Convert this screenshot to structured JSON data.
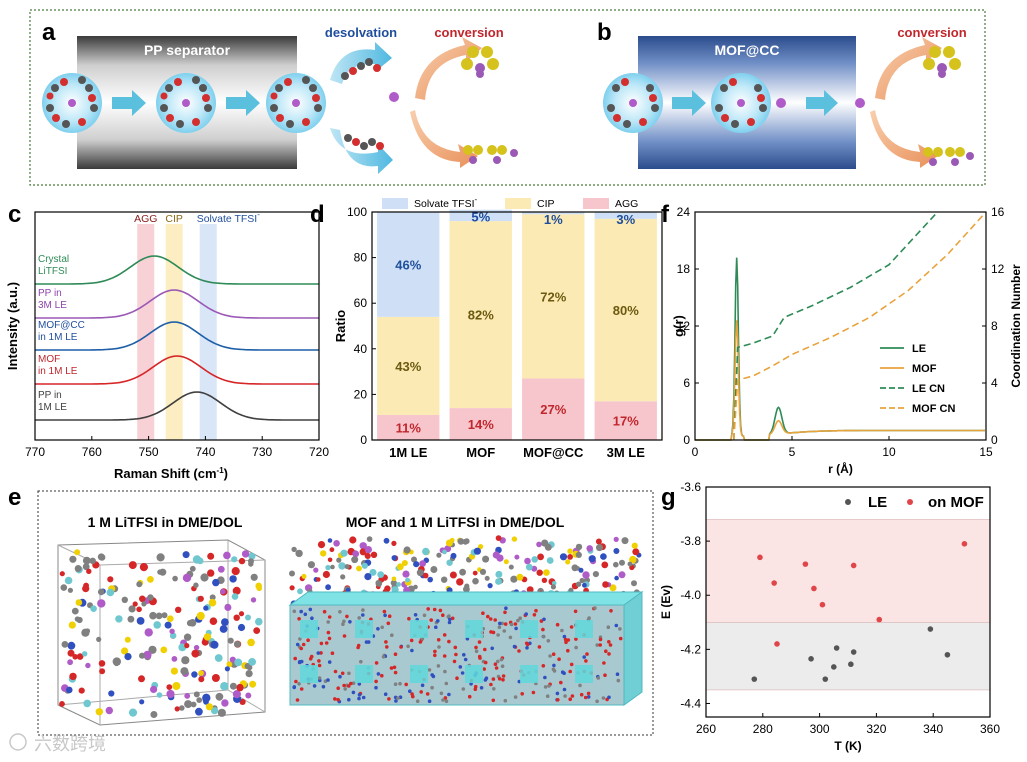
{
  "panel_labels": {
    "a": "a",
    "b": "b",
    "c": "c",
    "d": "d",
    "e": "e",
    "f": "f",
    "g": "g"
  },
  "schematic": {
    "pp_separator": "PP separator",
    "mof_cc": "MOF@CC",
    "desolvation": "desolvation",
    "conversion_a": "conversion",
    "conversion_b": "conversion"
  },
  "simulation": {
    "left_title": "1 M LiTFSI in DME/DOL",
    "right_title": "MOF and 1 M LiTFSI in DME/DOL"
  },
  "watermark": "六数跨境",
  "colors": {
    "blue_arrow": "#5bc0de",
    "mof_blue": "#2f4f8f",
    "le_green": "#2e8b57",
    "mof_orange": "#e8a33d",
    "agg_pink": "#f6c6cc",
    "cip_yellow": "#fbeab3",
    "solvate_blue": "#cfe0f6",
    "red_text": "#c0272d",
    "navy_text": "#1f4e9c"
  },
  "chart_data": [
    {
      "id": "c",
      "type": "line",
      "xlabel": "Raman Shift (cm",
      "xlabel_sup": "-1",
      "xlabel_end": ")",
      "ylabel": "Intensity (a.u.)",
      "xlim": [
        770,
        720
      ],
      "xticks": [
        "770",
        "760",
        "750",
        "740",
        "730",
        "720"
      ],
      "bands": [
        {
          "label": "AGG",
          "center": 750.5,
          "width": 3,
          "color": "#f6c6cc",
          "text_color": "#8b1a1a"
        },
        {
          "label": "CIP",
          "center": 745.5,
          "width": 3,
          "color": "#fbeab3",
          "text_color": "#8b6914"
        },
        {
          "label": "Solvate TFSI",
          "sup": "-",
          "center": 739.5,
          "width": 3,
          "color": "#cfe0f6",
          "text_color": "#1f4e9c"
        }
      ],
      "series": [
        {
          "name": "PP in 1M LE",
          "lines": [
            "PP in",
            "1M LE"
          ],
          "peak": 741.5,
          "color": "#404040",
          "text_color": "#404040"
        },
        {
          "name": "MOF in 1M LE",
          "lines": [
            "MOF",
            "in 1M LE"
          ],
          "peak": 745.0,
          "color": "#d62728",
          "text_color": "#c0272d"
        },
        {
          "name": "MOF@CC in 1M LE",
          "lines": [
            "MOF@CC",
            "in 1M LE"
          ],
          "peak": 745.5,
          "color": "#1f5fa8",
          "text_color": "#1f4e9c"
        },
        {
          "name": "PP in 3M LE",
          "lines": [
            "PP in",
            "3M LE"
          ],
          "peak": 745.5,
          "color": "#9b59b6",
          "text_color": "#8e44ad"
        },
        {
          "name": "Crystal LiTFSI",
          "lines": [
            "Crystal",
            "LiTFSI"
          ],
          "peak": 749.0,
          "color": "#2e8b57",
          "text_color": "#2e8b57"
        }
      ]
    },
    {
      "id": "d",
      "type": "bar",
      "ylabel": "Ratio",
      "ylim": [
        0,
        100
      ],
      "yticks": [
        "0",
        "20",
        "40",
        "60",
        "80",
        "100"
      ],
      "categories": [
        "1M LE",
        "MOF",
        "MOF@CC",
        "3M LE"
      ],
      "legend": [
        {
          "name": "Solvate TFSI",
          "sup": "-",
          "color": "#cfe0f6"
        },
        {
          "name": "CIP",
          "color": "#fbeab3"
        },
        {
          "name": "AGG",
          "color": "#f6c6cc"
        }
      ],
      "series": [
        {
          "name": "AGG",
          "values": [
            11,
            14,
            27,
            17
          ],
          "labels": [
            "11%",
            "14%",
            "27%",
            "17%"
          ],
          "color": "#f6c6cc",
          "text_color": "#c0272d"
        },
        {
          "name": "CIP",
          "values": [
            43,
            82,
            72,
            80
          ],
          "labels": [
            "43%",
            "82%",
            "72%",
            "80%"
          ],
          "color": "#fbeab3",
          "text_color": "#6b5a10"
        },
        {
          "name": "Solvate TFSI",
          "values": [
            46,
            5,
            1,
            3
          ],
          "labels": [
            "46%",
            "5%",
            "1%",
            "3%"
          ],
          "color": "#cfe0f6",
          "text_color": "#1f4e9c"
        }
      ]
    },
    {
      "id": "f",
      "type": "line",
      "xlabel": "r (Å)",
      "ylabel": "g(r)",
      "ylabel_right": "Coordination Number",
      "xlim": [
        0,
        15
      ],
      "ylim": [
        0,
        24
      ],
      "ylim_right": [
        0,
        16
      ],
      "xticks": [
        "0",
        "5",
        "10",
        "15"
      ],
      "yticks": [
        "0",
        "6",
        "12",
        "18",
        "24"
      ],
      "yticks_right": [
        "0",
        "4",
        "8",
        "12",
        "16"
      ],
      "legend": [
        {
          "name": "LE",
          "style": "solid",
          "color": "#2e8b57"
        },
        {
          "name": "MOF",
          "style": "solid",
          "color": "#e8a33d"
        },
        {
          "name": "LE CN",
          "style": "dashed",
          "color": "#2e8b57"
        },
        {
          "name": "MOF CN",
          "style": "dashed",
          "color": "#e8a33d"
        }
      ],
      "le_cn": [
        [
          2.0,
          0
        ],
        [
          2.2,
          6.5
        ],
        [
          3.0,
          6.8
        ],
        [
          4.0,
          7.3
        ],
        [
          4.6,
          8.6
        ],
        [
          6.0,
          9.4
        ],
        [
          8.0,
          10.7
        ],
        [
          10.0,
          12.3
        ],
        [
          12.5,
          16.0
        ]
      ],
      "mof_cn": [
        [
          2.0,
          0
        ],
        [
          2.2,
          4.2
        ],
        [
          3.0,
          4.5
        ],
        [
          4.0,
          5.2
        ],
        [
          5.0,
          6.0
        ],
        [
          7.0,
          7.2
        ],
        [
          9.0,
          8.6
        ],
        [
          11.0,
          10.5
        ],
        [
          13.0,
          13.0
        ],
        [
          15.0,
          16.0
        ]
      ]
    },
    {
      "id": "g",
      "type": "scatter",
      "xlabel": "T (K)",
      "ylabel": "E (Ev)",
      "xlim": [
        260,
        360
      ],
      "ylim": [
        -4.45,
        -3.6
      ],
      "xticks": [
        "260",
        "280",
        "300",
        "320",
        "340",
        "360"
      ],
      "yticks": [
        "-3.6",
        "-3.8",
        "-4.0",
        "-4.2",
        "-4.4"
      ],
      "bands": [
        {
          "from": -4.1,
          "to": -3.72,
          "color": "#fbe4e4"
        },
        {
          "from": -4.35,
          "to": -4.1,
          "color": "#ececec"
        }
      ],
      "series": [
        {
          "name": "LE",
          "color": "#555555",
          "points": [
            [
              277,
              -4.31
            ],
            [
              297,
              -4.235
            ],
            [
              302,
              -4.31
            ],
            [
              305,
              -4.265
            ],
            [
              306,
              -4.195
            ],
            [
              311,
              -4.255
            ],
            [
              312,
              -4.21
            ],
            [
              339,
              -4.125
            ],
            [
              345,
              -4.22
            ]
          ]
        },
        {
          "name": "on MOF",
          "color": "#e0454a",
          "points": [
            [
              279,
              -3.86
            ],
            [
              284,
              -3.955
            ],
            [
              285,
              -4.18
            ],
            [
              295,
              -3.885
            ],
            [
              298,
              -3.975
            ],
            [
              301,
              -4.035
            ],
            [
              312,
              -3.89
            ],
            [
              321,
              -4.09
            ],
            [
              351,
              -3.81
            ]
          ]
        }
      ]
    }
  ]
}
